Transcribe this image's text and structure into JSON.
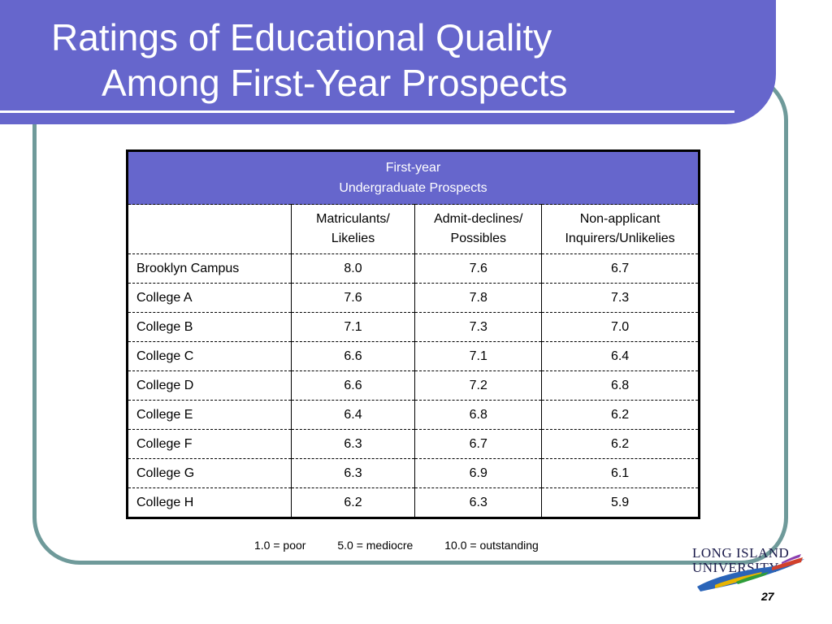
{
  "slide": {
    "title_line1": "Ratings of Educational Quality",
    "title_line2": "Among First-Year Prospects",
    "page_number": "27"
  },
  "table": {
    "group_header_line1": "First-year",
    "group_header_line2": "Undergraduate Prospects",
    "columns": [
      {
        "line1": "Matriculants/",
        "line2": "Likelies"
      },
      {
        "line1": "Admit-declines/",
        "line2": "Possibles"
      },
      {
        "line1": "Non-applicant",
        "line2": "Inquirers/Unlikelies"
      }
    ],
    "rows": [
      {
        "name": "Brooklyn Campus",
        "values": [
          "8.0",
          "7.6",
          "6.7"
        ]
      },
      {
        "name": "College A",
        "values": [
          "7.6",
          "7.8",
          "7.3"
        ]
      },
      {
        "name": "College B",
        "values": [
          "7.1",
          "7.3",
          "7.0"
        ]
      },
      {
        "name": "College C",
        "values": [
          "6.6",
          "7.1",
          "6.4"
        ]
      },
      {
        "name": "College D",
        "values": [
          "6.6",
          "7.2",
          "6.8"
        ]
      },
      {
        "name": "College E",
        "values": [
          "6.4",
          "6.8",
          "6.2"
        ]
      },
      {
        "name": "College F",
        "values": [
          "6.3",
          "6.7",
          "6.2"
        ]
      },
      {
        "name": "College G",
        "values": [
          "6.3",
          "6.9",
          "6.1"
        ]
      },
      {
        "name": "College H",
        "values": [
          "6.2",
          "6.3",
          "5.9"
        ]
      }
    ]
  },
  "scale_note": {
    "poor": "1.0 = poor",
    "mediocre": "5.0 = mediocre",
    "outstanding": "10.0 = outstanding"
  },
  "logo": {
    "line1": "LONG ISLAND",
    "line2": "UNIVERSITY"
  },
  "colors": {
    "accent": "#6666cc",
    "frame": "#6f9a9a"
  }
}
